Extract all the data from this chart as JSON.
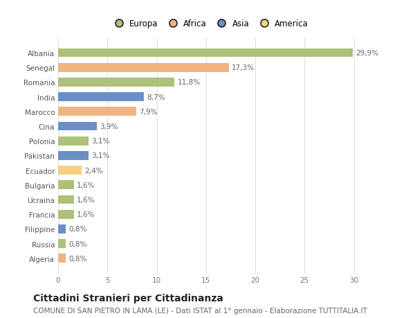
{
  "countries": [
    "Albania",
    "Senegal",
    "Romania",
    "India",
    "Marocco",
    "Cina",
    "Polonia",
    "Pakistan",
    "Ecuador",
    "Bulgaria",
    "Ucraina",
    "Francia",
    "Filippine",
    "Russia",
    "Algeria"
  ],
  "values": [
    29.9,
    17.3,
    11.8,
    8.7,
    7.9,
    3.9,
    3.1,
    3.1,
    2.4,
    1.6,
    1.6,
    1.6,
    0.8,
    0.8,
    0.8
  ],
  "labels": [
    "29,9%",
    "17,3%",
    "11,8%",
    "8,7%",
    "7,9%",
    "3,9%",
    "3,1%",
    "3,1%",
    "2,4%",
    "1,6%",
    "1,6%",
    "1,6%",
    "0,8%",
    "0,8%",
    "0,8%"
  ],
  "continents": [
    "Europa",
    "Africa",
    "Europa",
    "Asia",
    "Africa",
    "Asia",
    "Europa",
    "Asia",
    "America",
    "Europa",
    "Europa",
    "Europa",
    "Asia",
    "Europa",
    "Africa"
  ],
  "colors": {
    "Europa": "#adc178",
    "Africa": "#f0b482",
    "Asia": "#6b8fc4",
    "America": "#f5d080"
  },
  "xlim": [
    0,
    32
  ],
  "xticks": [
    0,
    5,
    10,
    15,
    20,
    25,
    30
  ],
  "title": "Cittadini Stranieri per Cittadinanza",
  "subtitle": "COMUNE DI SAN PIETRO IN LAMA (LE) - Dati ISTAT al 1° gennaio - Elaborazione TUTTITALIA.IT",
  "bg_color": "#ffffff",
  "grid_color": "#e0e0e0",
  "bar_height": 0.6,
  "label_fontsize": 7.5,
  "tick_fontsize": 7.5,
  "title_fontsize": 10,
  "subtitle_fontsize": 7.5,
  "legend_order": [
    "Europa",
    "Africa",
    "Asia",
    "America"
  ]
}
